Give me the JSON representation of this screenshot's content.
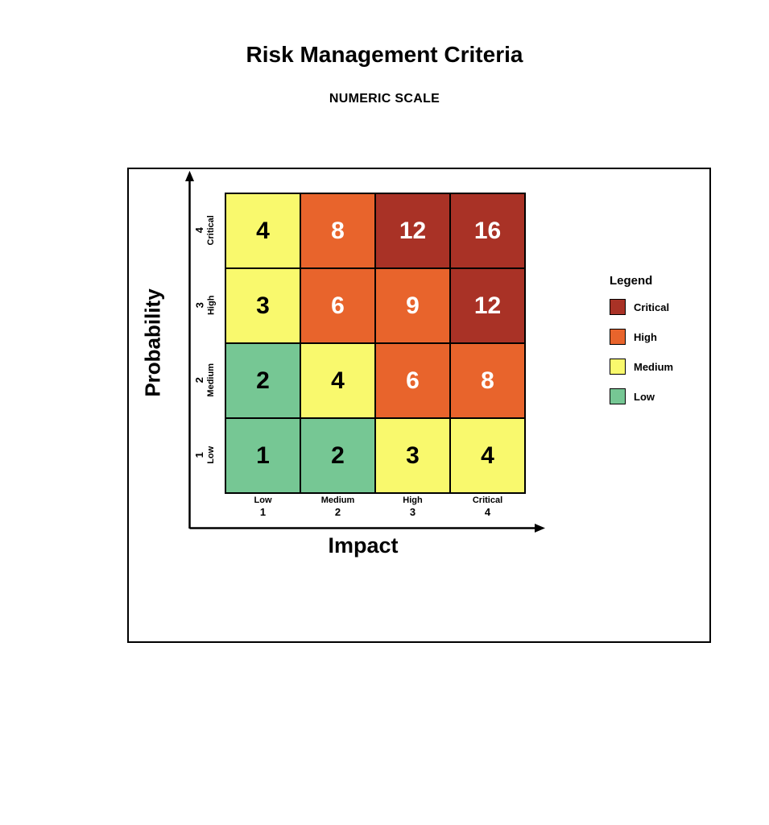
{
  "page": {
    "title": "Risk Management Criteria",
    "subtitle": "NUMERIC SCALE"
  },
  "axes": {
    "x_label": "Impact",
    "y_label": "Probability"
  },
  "legend": {
    "title": "Legend",
    "items": [
      {
        "label": "Critical",
        "color": "#A93226"
      },
      {
        "label": "High",
        "color": "#E8642C"
      },
      {
        "label": "Medium",
        "color": "#F9F96D"
      },
      {
        "label": "Low",
        "color": "#76C794"
      }
    ]
  },
  "chart_data": {
    "type": "heatmap",
    "title": "Risk Management Criteria",
    "subtitle": "NUMERIC SCALE",
    "xlabel": "Impact",
    "ylabel": "Probability",
    "x_categories": [
      {
        "name": "Low",
        "value": "1"
      },
      {
        "name": "Medium",
        "value": "2"
      },
      {
        "name": "High",
        "value": "3"
      },
      {
        "name": "Critical",
        "value": "4"
      }
    ],
    "y_categories_top_to_bottom": [
      {
        "value": "4",
        "name": "Critical"
      },
      {
        "value": "3",
        "name": "High"
      },
      {
        "value": "2",
        "name": "Medium"
      },
      {
        "value": "1",
        "name": "Low"
      }
    ],
    "rows_top_to_bottom": [
      {
        "probability": 4,
        "cells": [
          {
            "score": 4,
            "level": "Medium"
          },
          {
            "score": 8,
            "level": "High"
          },
          {
            "score": 12,
            "level": "Critical"
          },
          {
            "score": 16,
            "level": "Critical"
          }
        ]
      },
      {
        "probability": 3,
        "cells": [
          {
            "score": 3,
            "level": "Medium"
          },
          {
            "score": 6,
            "level": "High"
          },
          {
            "score": 9,
            "level": "High"
          },
          {
            "score": 12,
            "level": "Critical"
          }
        ]
      },
      {
        "probability": 2,
        "cells": [
          {
            "score": 2,
            "level": "Low"
          },
          {
            "score": 4,
            "level": "Medium"
          },
          {
            "score": 6,
            "level": "High"
          },
          {
            "score": 8,
            "level": "High"
          }
        ]
      },
      {
        "probability": 1,
        "cells": [
          {
            "score": 1,
            "level": "Low"
          },
          {
            "score": 2,
            "level": "Low"
          },
          {
            "score": 3,
            "level": "Medium"
          },
          {
            "score": 4,
            "level": "Medium"
          }
        ]
      }
    ],
    "level_colors": {
      "Critical": "#A93226",
      "High": "#E8642C",
      "Medium": "#F9F96D",
      "Low": "#76C794"
    },
    "cell_text_colors": {
      "Critical": "#FFFFFF",
      "High": "#FFFFFF",
      "Medium": "#000000",
      "Low": "#000000"
    },
    "legend_position": "right",
    "grid": true
  }
}
